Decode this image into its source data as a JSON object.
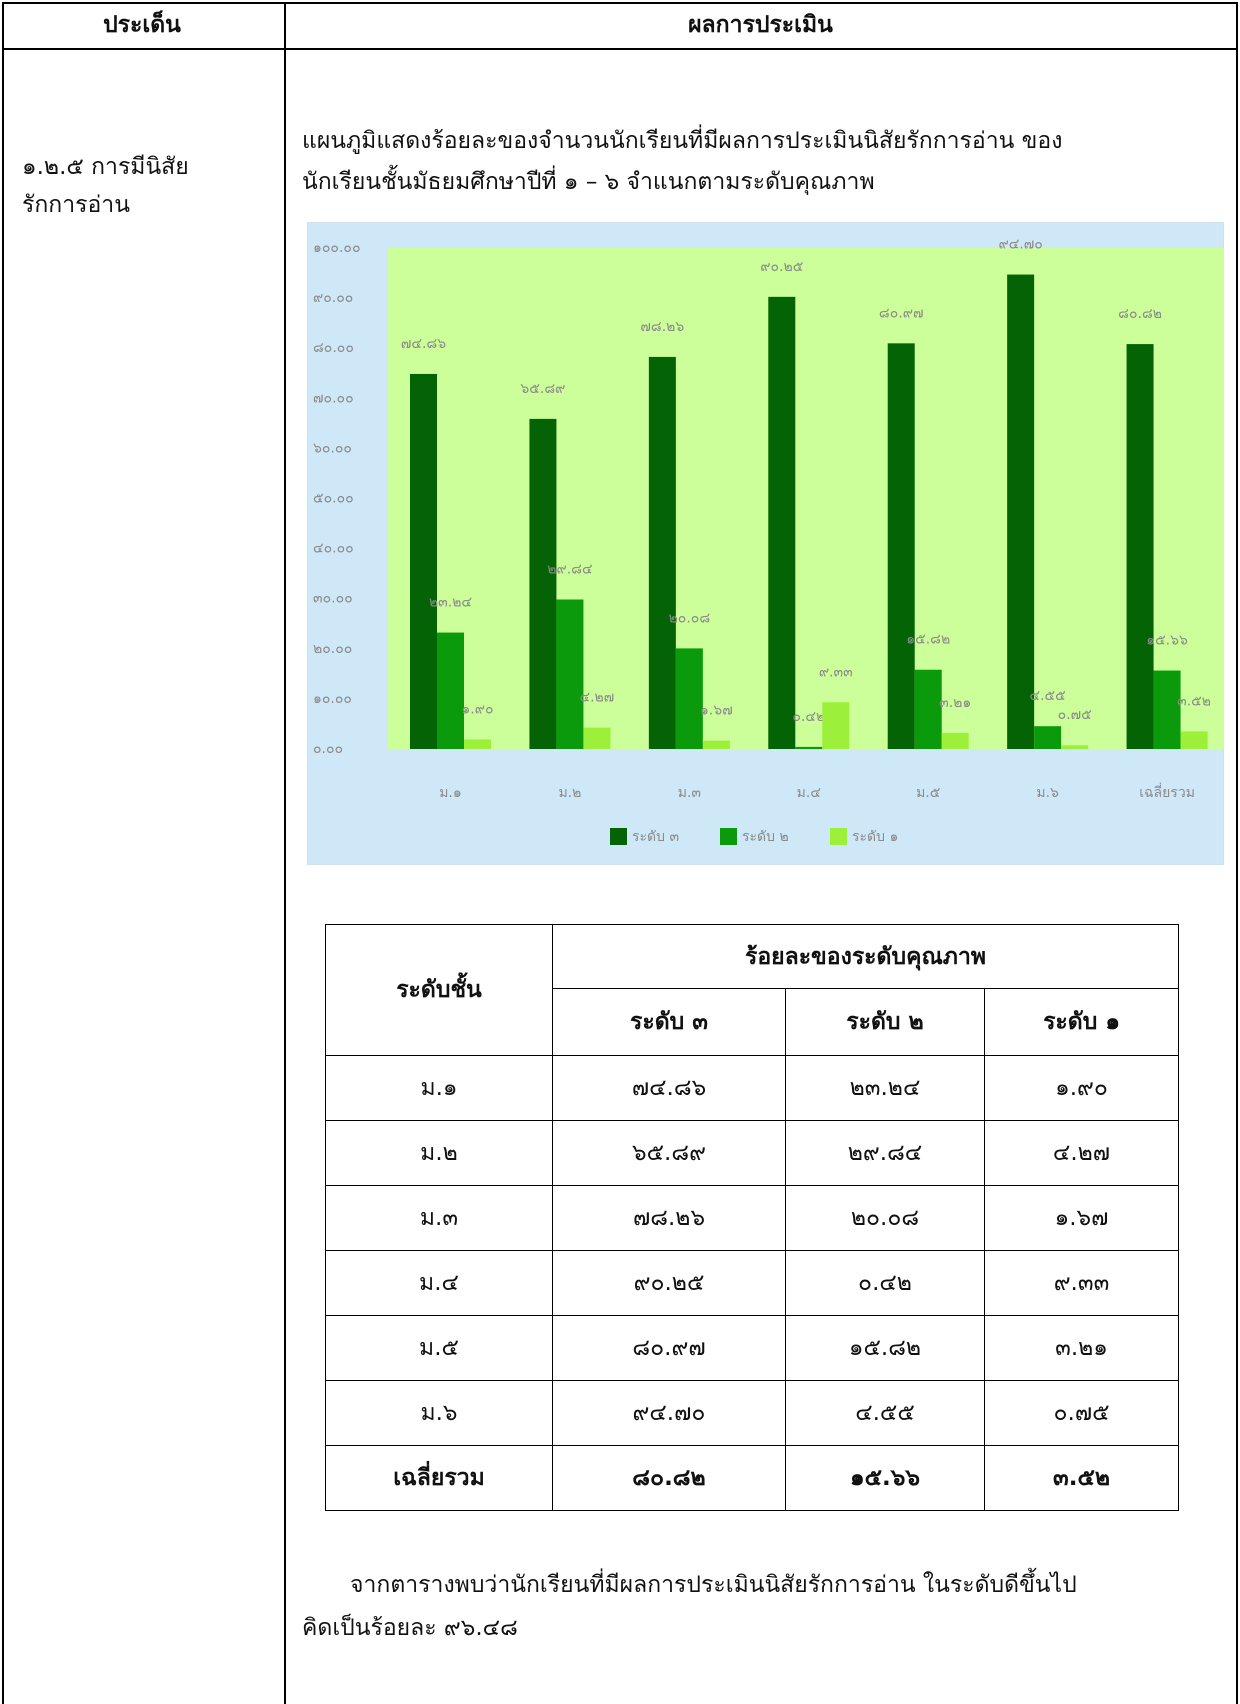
{
  "header": {
    "col1": "ประเด็น",
    "col2": "ผลการประเมิน"
  },
  "topic": [
    "๑.๒.๕ การมีนิสัย",
    "รักการอ่าน"
  ],
  "intro": [
    "แผนภูมิแสดงร้อยละของจำนวนนักเรียนที่มีผลการประเมินนิสัยรักการอ่าน ของ",
    "นักเรียนชั้นมัธยมศึกษาปีที่ ๑ – ๖  จำแนกตามระดับคุณภาพ"
  ],
  "chart_data": {
    "type": "bar",
    "categories": [
      "ม.๑",
      "ม.๒",
      "ม.๓",
      "ม.๔",
      "ม.๕",
      "ม.๖",
      "เฉลี่ยรวม"
    ],
    "series": [
      {
        "name": "ระดับ ๓",
        "color": "#046304",
        "values": [
          74.86,
          65.89,
          78.26,
          90.25,
          80.97,
          94.7,
          80.82
        ],
        "value_labels": [
          "๗๔.๘๖",
          "๖๕.๘๙",
          "๗๘.๒๖",
          "๙๐.๒๕",
          "๘๐.๙๗",
          "๙๔.๗๐",
          "๘๐.๘๒"
        ]
      },
      {
        "name": "ระดับ ๒",
        "color": "#0b9a0b",
        "values": [
          23.24,
          29.84,
          20.08,
          0.42,
          15.82,
          4.55,
          15.66
        ],
        "value_labels": [
          "๒๓.๒๔",
          "๒๙.๘๔",
          "๒๐.๐๘",
          "๐.๔๒",
          "๑๕.๘๒",
          "๔.๕๕",
          "๑๕.๖๖"
        ]
      },
      {
        "name": "ระดับ ๑",
        "color": "#9cf03a",
        "values": [
          1.9,
          4.27,
          1.67,
          9.33,
          3.21,
          0.75,
          3.52
        ],
        "value_labels": [
          "๑.๙๐",
          "๔.๒๗",
          "๑.๖๗",
          "๙.๓๓",
          "๓.๒๑",
          "๐.๗๕",
          "๓.๕๒"
        ]
      }
    ],
    "ylim": [
      0,
      100
    ],
    "yticks": [
      {
        "value": 0,
        "label": "๐.๐๐"
      },
      {
        "value": 10,
        "label": "๑๐.๐๐"
      },
      {
        "value": 20,
        "label": "๒๐.๐๐"
      },
      {
        "value": 30,
        "label": "๓๐.๐๐"
      },
      {
        "value": 40,
        "label": "๔๐.๐๐"
      },
      {
        "value": 50,
        "label": "๕๐.๐๐"
      },
      {
        "value": 60,
        "label": "๖๐.๐๐"
      },
      {
        "value": 70,
        "label": "๗๐.๐๐"
      },
      {
        "value": 80,
        "label": "๘๐.๐๐"
      },
      {
        "value": 90,
        "label": "๙๐.๐๐"
      },
      {
        "value": 100,
        "label": "๑๐๐.๐๐"
      }
    ],
    "grid": false,
    "legend": "bottom"
  },
  "table": {
    "row_header": "ระดับชั้น",
    "group_header": "ร้อยละของระดับคุณภาพ",
    "subheaders": [
      "ระดับ ๓",
      "ระดับ ๒",
      "ระดับ ๑"
    ],
    "rows": [
      [
        "ม.๑",
        "๗๔.๘๖",
        "๒๓.๒๔",
        "๑.๙๐"
      ],
      [
        "ม.๒",
        "๖๕.๘๙",
        "๒๙.๘๔",
        "๔.๒๗"
      ],
      [
        "ม.๓",
        "๗๘.๒๖",
        "๒๐.๐๘",
        "๑.๖๗"
      ],
      [
        "ม.๔",
        "๙๐.๒๕",
        "๐.๔๒",
        "๙.๓๓"
      ],
      [
        "ม.๕",
        "๘๐.๙๗",
        "๑๕.๘๒",
        "๓.๒๑"
      ],
      [
        "ม.๖",
        "๙๔.๗๐",
        "๔.๕๕",
        "๐.๗๕"
      ],
      [
        "เฉลี่ยรวม",
        "๘๐.๘๒",
        "๑๕.๖๖",
        "๓.๕๒"
      ]
    ]
  },
  "conclusion": [
    "จากตารางพบว่านักเรียนที่มีผลการประเมินนิสัยรักการอ่าน ในระดับดีขึ้นไป",
    "คิดเป็นร้อยละ ๙๖.๔๘"
  ]
}
